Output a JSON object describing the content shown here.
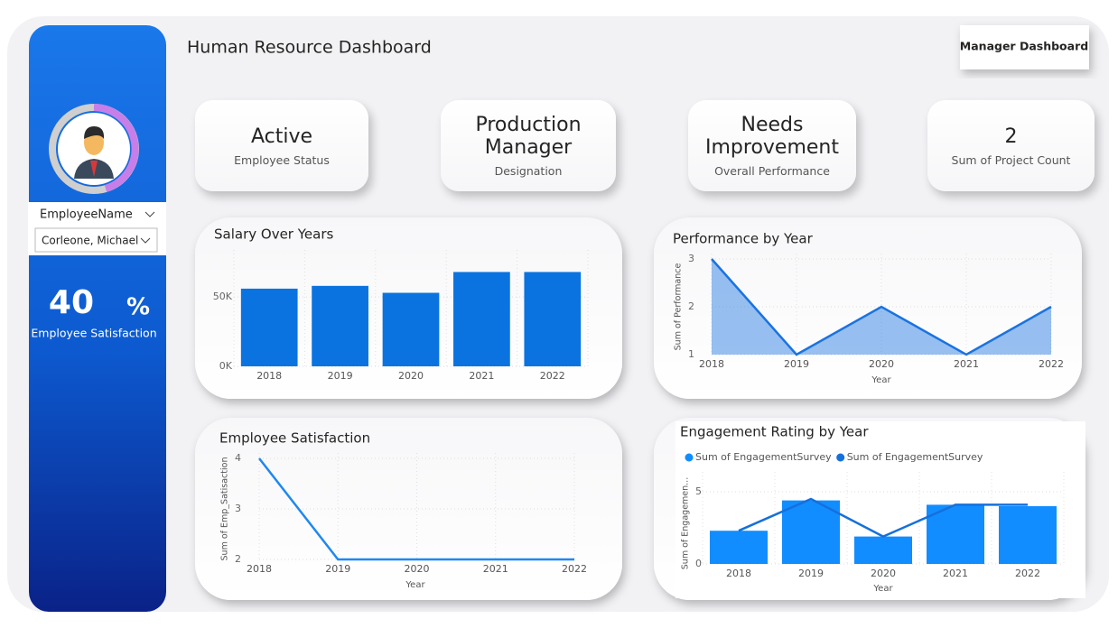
{
  "header": {
    "title": "Human Resource Dashboard",
    "button": "Manager Dashboard"
  },
  "sidebar": {
    "slicer_label": "EmployeeName",
    "slicer_value": "Corleone, Michael",
    "satisfaction": 40,
    "satisfaction_unit": "%",
    "satisfaction_label": "Employee Satisfaction"
  },
  "cards": [
    {
      "value": "Active",
      "label": "Employee Status"
    },
    {
      "value": "Production Manager",
      "label": "Designation"
    },
    {
      "value": "Needs Improvement",
      "label": "Overall Performance"
    },
    {
      "value": 2,
      "label": "Sum of Project Count"
    }
  ],
  "chart_data": [
    {
      "type": "bar",
      "title": "Salary Over Years",
      "categories": [
        "2018",
        "2019",
        "2020",
        "2021",
        "2022"
      ],
      "values": [
        56000,
        58000,
        53000,
        68000,
        68000
      ],
      "color": "#0a73e0",
      "ylim": [
        0,
        80000
      ],
      "yticks": [
        {
          "value": 0,
          "label": "0K"
        },
        {
          "value": 50000,
          "label": "50K"
        }
      ],
      "grid": true
    },
    {
      "type": "area",
      "title": "Performance by Year",
      "x_label": "Year",
      "y_label": "Sum of Performance",
      "categories": [
        "2018",
        "2019",
        "2020",
        "2021",
        "2022"
      ],
      "values": [
        3,
        1,
        2,
        1,
        2
      ],
      "color": "#1a73e0",
      "ylim": [
        1,
        3
      ],
      "yticks": [
        1,
        2,
        3
      ],
      "grid": true
    },
    {
      "type": "line",
      "title": "Employee Satisfaction",
      "x_label": "Year",
      "y_label": "Sum of Emp_Satisaction",
      "categories": [
        "2018",
        "2019",
        "2020",
        "2021",
        "2022"
      ],
      "values": [
        4,
        2,
        2,
        2,
        2
      ],
      "color": "#1e88f0",
      "ylim": [
        2,
        4
      ],
      "yticks": [
        2,
        3,
        4
      ],
      "grid": true
    },
    {
      "type": "combo",
      "title": "Engagement Rating by Year",
      "x_label": "Year",
      "y_label": "Sum of Engagemen...",
      "categories": [
        "2018",
        "2019",
        "2020",
        "2021",
        "2022"
      ],
      "series": [
        {
          "name": "Sum of EngagementSurvey",
          "type": "bar",
          "color": "#118dff",
          "values": [
            2.3,
            4.4,
            1.9,
            4.1,
            4.0
          ]
        },
        {
          "name": "Sum of EngagementSurvey",
          "type": "line",
          "color": "#1570dc",
          "values": [
            2.3,
            4.5,
            1.9,
            4.1,
            4.1
          ]
        }
      ],
      "ylim": [
        0,
        6
      ],
      "yticks": [
        0,
        5
      ],
      "grid": true,
      "legend": "top-left"
    }
  ]
}
